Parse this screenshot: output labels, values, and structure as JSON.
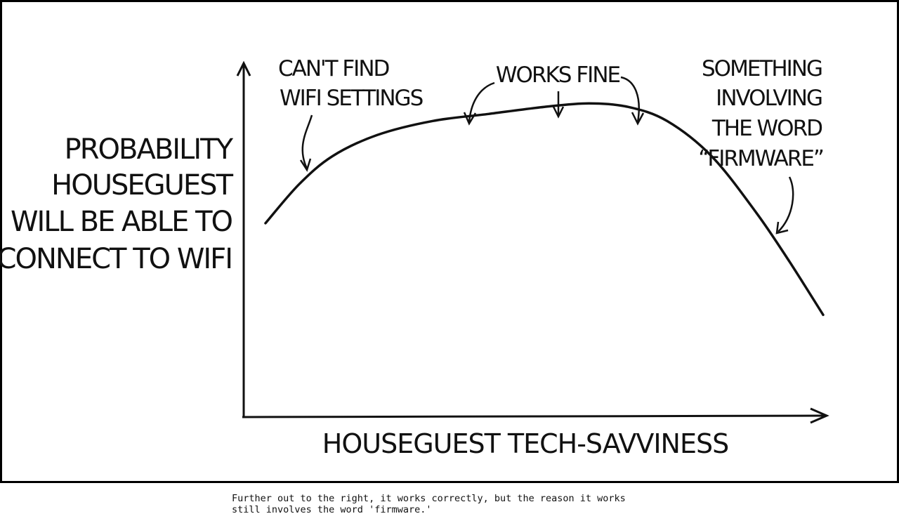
{
  "chart_data": {
    "type": "line",
    "xlabel": "HOUSEGUEST TECH-SAVVINESS",
    "ylabel_lines": [
      "PROBABILITY",
      "HOUSEGUEST",
      "WILL BE ABLE TO",
      "CONNECT TO WIFI"
    ],
    "grid": false,
    "legend": "none",
    "series": [
      {
        "x": [
          0,
          0.06,
          0.12,
          0.2,
          0.3,
          0.4,
          0.5,
          0.58,
          0.65,
          0.72,
          0.8,
          0.88,
          0.94,
          1.0
        ],
        "values": [
          0.55,
          0.66,
          0.74,
          0.8,
          0.84,
          0.86,
          0.88,
          0.89,
          0.88,
          0.84,
          0.74,
          0.58,
          0.44,
          0.29
        ]
      }
    ],
    "annotations": [
      {
        "key": "cant_find",
        "lines": [
          "CAN'T FIND",
          "WIFI SETTINGS"
        ]
      },
      {
        "key": "works_fine",
        "lines": [
          "WORKS FINE"
        ]
      },
      {
        "key": "firmware",
        "lines": [
          "SOMETHING",
          "INVOLVING",
          "THE WORD",
          "“FIRMWARE”"
        ]
      }
    ]
  },
  "caption": "Further out to the right, it works correctly, but the reason it works\nstill involves the word 'firmware.'"
}
